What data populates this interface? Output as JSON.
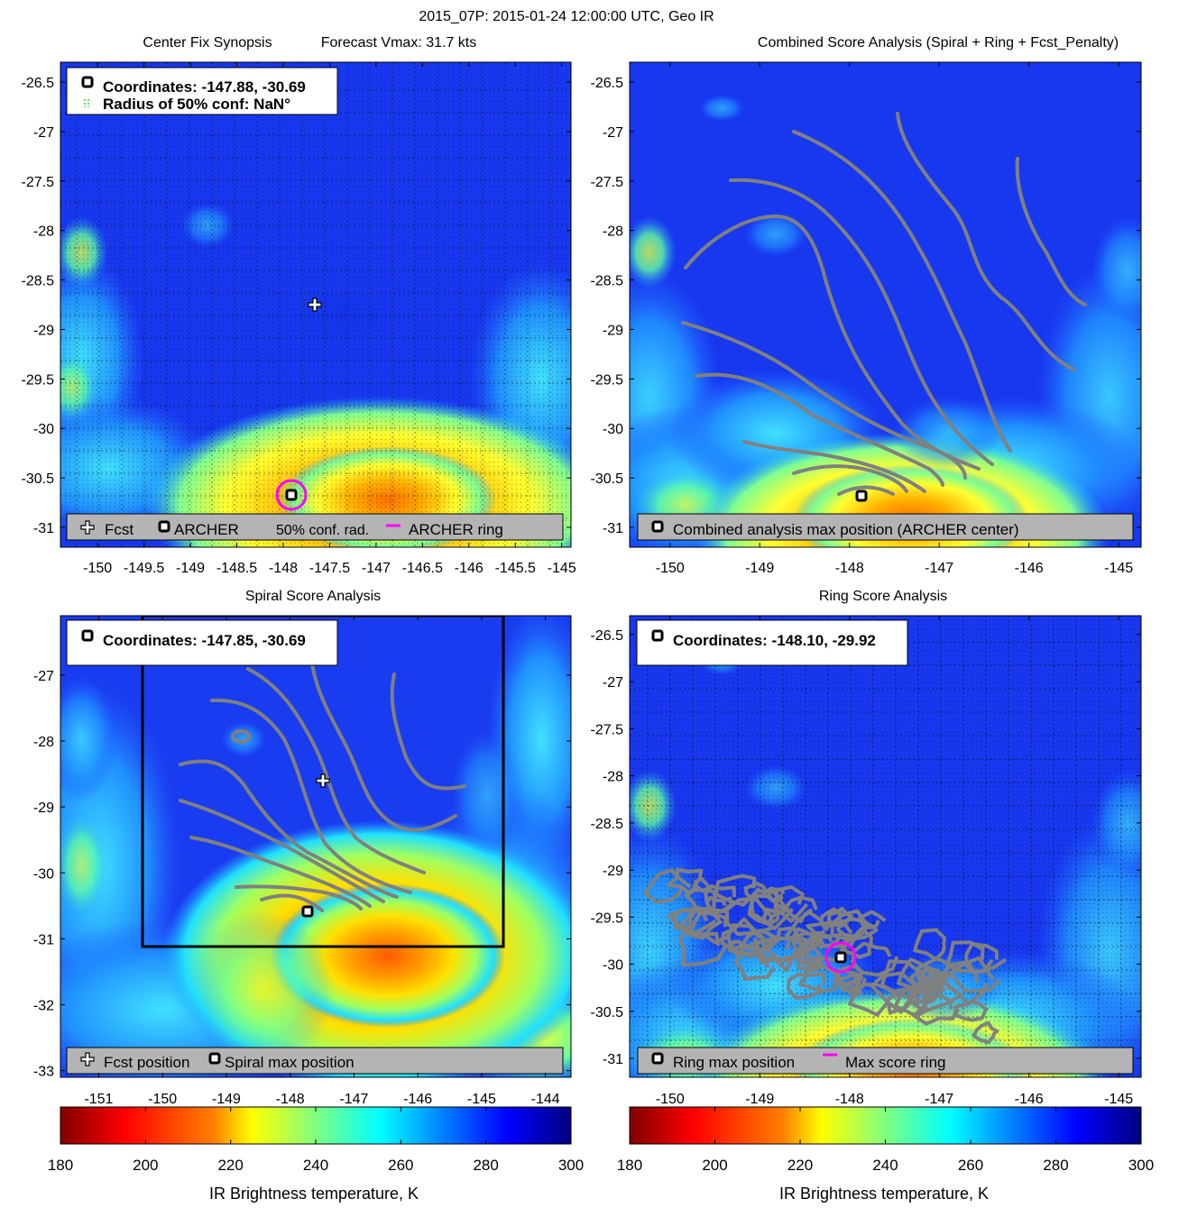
{
  "figure_title": "2015_07P: 2015-01-24 12:00:00 UTC, Geo IR",
  "colors": {
    "ring": "#ff00ff",
    "contour": "#808080",
    "box": "#000000",
    "legend_bg": "#b4b4b4",
    "colormap": [
      "#800000",
      "#ff0000",
      "#ff8000",
      "#ffff00",
      "#80ff80",
      "#00ffff",
      "#0080ff",
      "#0000ff",
      "#000080"
    ]
  },
  "chart_data": [
    {
      "type": "heatmap",
      "panel": "top-left",
      "title_left": "Center Fix Synopsis",
      "title_right": "Forecast Vmax: 31.7 kts",
      "x_ticks": [
        "-150",
        "-149.5",
        "-149",
        "-148.5",
        "-148",
        "-147.5",
        "-147",
        "-146.5",
        "-146",
        "-145.5",
        "-145"
      ],
      "y_ticks": [
        "-26.5",
        "-27",
        "-27.5",
        "-28",
        "-28.5",
        "-29",
        "-29.5",
        "-30",
        "-30.5",
        "-31"
      ],
      "xlim": [
        -150.4,
        -144.9
      ],
      "ylim": [
        -31.2,
        -26.3
      ],
      "grid": true,
      "info_box": [
        "Coordinates: -147.88, -30.69",
        "Radius of 50% conf: NaN°"
      ],
      "legend": [
        "Fcst",
        "ARCHER",
        "50% conf. rad.",
        "ARCHER ring"
      ],
      "points": {
        "fcst": [
          -147.6,
          -28.72
        ],
        "archer": [
          -147.88,
          -30.69
        ],
        "archer_ring_radius_deg": 0.12
      }
    },
    {
      "type": "heatmap",
      "panel": "top-right",
      "title": "Combined Score Analysis (Spiral + Ring + Fcst_Penalty)",
      "x_ticks": [
        "-150",
        "-149",
        "-148",
        "-147",
        "-146",
        "-145"
      ],
      "y_ticks": [
        "-26.5",
        "-27",
        "-27.5",
        "-28",
        "-28.5",
        "-29",
        "-29.5",
        "-30",
        "-30.5",
        "-31"
      ],
      "xlim": [
        -150.45,
        -144.75
      ],
      "ylim": [
        -31.2,
        -26.3
      ],
      "legend": [
        "Combined analysis max position (ARCHER center)"
      ],
      "points": {
        "archer": [
          -147.88,
          -30.69
        ]
      }
    },
    {
      "type": "heatmap",
      "panel": "bottom-left",
      "title": "Spiral Score Analysis",
      "x_ticks": [
        "-151",
        "-150",
        "-149",
        "-148",
        "-147",
        "-146",
        "-145",
        "-144"
      ],
      "y_ticks": [
        "-27",
        "-28",
        "-29",
        "-30",
        "-31",
        "-32",
        "-33"
      ],
      "xlim": [
        -151.6,
        -143.6
      ],
      "ylim": [
        -33.1,
        -26.1
      ],
      "info_box": [
        "Coordinates: -147.85, -30.69"
      ],
      "legend": [
        "Fcst position",
        "Spiral max position"
      ],
      "points": {
        "fcst": [
          -147.6,
          -28.72
        ],
        "spiral_max": [
          -147.85,
          -30.69
        ]
      },
      "search_box": {
        "x": [
          -150.35,
          -144.35
        ],
        "y": [
          -31.2,
          -26.1
        ]
      }
    },
    {
      "type": "heatmap",
      "panel": "bottom-right",
      "title": "Ring Score Analysis",
      "x_ticks": [
        "-150",
        "-149",
        "-148",
        "-147",
        "-146",
        "-145"
      ],
      "y_ticks": [
        "-26.5",
        "-27",
        "-27.5",
        "-28",
        "-28.5",
        "-29",
        "-29.5",
        "-30",
        "-30.5",
        "-31"
      ],
      "xlim": [
        -150.45,
        -144.75
      ],
      "ylim": [
        -31.2,
        -26.3
      ],
      "grid": true,
      "info_box": [
        "Coordinates: -148.10, -29.92"
      ],
      "legend": [
        "Ring max position",
        "Max score ring"
      ],
      "points": {
        "ring_max": [
          -148.1,
          -29.92
        ],
        "max_ring_radius_deg": 0.14
      }
    }
  ],
  "colorbars": [
    {
      "label": "IR Brightness temperature, K",
      "ticks": [
        "180",
        "200",
        "220",
        "240",
        "260",
        "280",
        "300"
      ],
      "range": [
        180,
        300
      ]
    },
    {
      "label": "IR Brightness temperature, K",
      "ticks": [
        "180",
        "200",
        "220",
        "240",
        "260",
        "280",
        "300"
      ],
      "range": [
        180,
        300
      ]
    }
  ]
}
